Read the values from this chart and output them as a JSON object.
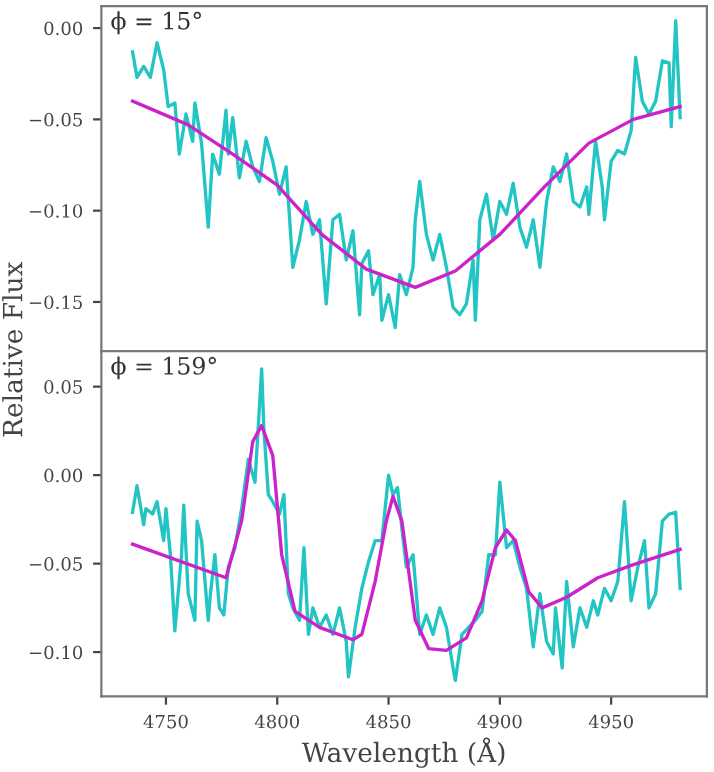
{
  "chart_data": [
    {
      "type": "line",
      "ylabel": "Relative Flux",
      "annotations": [
        "ϕ = 15°"
      ],
      "tick_labels": "y",
      "grid": false,
      "legend": false,
      "xlim": [
        4721,
        4993
      ],
      "ylim": [
        -0.177,
        0.012
      ],
      "yticks": [
        {
          "value": -0.15,
          "label": "−0.15"
        },
        {
          "value": -0.1,
          "label": "−0.10"
        },
        {
          "value": -0.05,
          "label": "−0.05"
        },
        {
          "value": 0,
          "label": "0.00"
        }
      ],
      "series": [
        {
          "color": "#22c4c4",
          "x": [
            4735,
            4737,
            4740,
            4743,
            4746,
            4749,
            4751,
            4754,
            4756,
            4759,
            4762,
            4763,
            4766,
            4769,
            4771,
            4774,
            4777,
            4778,
            4780,
            4783,
            4786,
            4789,
            4792,
            4795,
            4798,
            4801,
            4804,
            4807,
            4810,
            4813,
            4816,
            4819,
            4822,
            4825,
            4828,
            4831,
            4834,
            4837,
            4838,
            4841,
            4843,
            4846,
            4847,
            4850,
            4853,
            4855,
            4858,
            4861,
            4862,
            4864,
            4867,
            4870,
            4873,
            4876,
            4879,
            4882,
            4885,
            4888,
            4889,
            4891,
            4894,
            4897,
            4900,
            4903,
            4906,
            4909,
            4912,
            4915,
            4918,
            4921,
            4924,
            4927,
            4930,
            4933,
            4936,
            4939,
            4940,
            4943,
            4946,
            4947,
            4950,
            4953,
            4956,
            4959,
            4961,
            4964,
            4967,
            4970,
            4973,
            4976,
            4977,
            4979,
            4981
          ],
          "values": [
            -0.013,
            -0.027,
            -0.021,
            -0.027,
            -0.008,
            -0.023,
            -0.043,
            -0.041,
            -0.069,
            -0.047,
            -0.062,
            -0.041,
            -0.063,
            -0.109,
            -0.069,
            -0.08,
            -0.045,
            -0.069,
            -0.049,
            -0.082,
            -0.062,
            -0.076,
            -0.084,
            -0.06,
            -0.073,
            -0.091,
            -0.076,
            -0.131,
            -0.116,
            -0.095,
            -0.113,
            -0.105,
            -0.151,
            -0.105,
            -0.102,
            -0.127,
            -0.111,
            -0.157,
            -0.129,
            -0.122,
            -0.146,
            -0.135,
            -0.16,
            -0.146,
            -0.164,
            -0.135,
            -0.146,
            -0.131,
            -0.105,
            -0.084,
            -0.113,
            -0.127,
            -0.113,
            -0.131,
            -0.153,
            -0.157,
            -0.151,
            -0.127,
            -0.16,
            -0.105,
            -0.091,
            -0.116,
            -0.095,
            -0.102,
            -0.085,
            -0.109,
            -0.12,
            -0.105,
            -0.131,
            -0.095,
            -0.076,
            -0.084,
            -0.069,
            -0.095,
            -0.098,
            -0.087,
            -0.102,
            -0.062,
            -0.087,
            -0.105,
            -0.073,
            -0.067,
            -0.069,
            -0.056,
            -0.016,
            -0.04,
            -0.047,
            -0.04,
            -0.018,
            -0.019,
            -0.054,
            0.004,
            -0.049
          ]
        },
        {
          "color": "#cc22cc",
          "x": [
            4735,
            4760,
            4780,
            4800,
            4820,
            4840,
            4862,
            4880,
            4900,
            4920,
            4940,
            4960,
            4981
          ],
          "values": [
            -0.04,
            -0.053,
            -0.069,
            -0.086,
            -0.113,
            -0.132,
            -0.142,
            -0.133,
            -0.113,
            -0.087,
            -0.063,
            -0.05,
            -0.043
          ]
        }
      ]
    },
    {
      "type": "line",
      "xlabel": "Wavelength (Å)",
      "annotations": [
        "ϕ = 159°"
      ],
      "grid": false,
      "legend": false,
      "xlim": [
        4721,
        4993
      ],
      "ylim": [
        -0.125,
        0.07
      ],
      "xticks": [
        4750,
        4800,
        4850,
        4900,
        4950
      ],
      "yticks": [
        {
          "value": -0.1,
          "label": "−0.10"
        },
        {
          "value": -0.05,
          "label": "−0.05"
        },
        {
          "value": 0,
          "label": "0.00"
        },
        {
          "value": 0.05,
          "label": "0.05"
        }
      ],
      "series": [
        {
          "color": "#22c4c4",
          "x": [
            4735,
            4737,
            4740,
            4741,
            4744,
            4746,
            4749,
            4750,
            4752,
            4754,
            4757,
            4758,
            4760,
            4763,
            4764,
            4766,
            4769,
            4770,
            4772,
            4774,
            4776,
            4778,
            4781,
            4784,
            4787,
            4790,
            4793,
            4794,
            4796,
            4798,
            4801,
            4803,
            4805,
            4807,
            4810,
            4812,
            4814,
            4816,
            4819,
            4822,
            4825,
            4828,
            4831,
            4832,
            4835,
            4838,
            4841,
            4844,
            4847,
            4850,
            4852,
            4854,
            4856,
            4858,
            4861,
            4864,
            4867,
            4870,
            4873,
            4876,
            4879,
            4880,
            4883,
            4886,
            4889,
            4892,
            4895,
            4898,
            4900,
            4903,
            4906,
            4909,
            4912,
            4915,
            4918,
            4921,
            4924,
            4925,
            4928,
            4930,
            4933,
            4936,
            4939,
            4942,
            4944,
            4947,
            4950,
            4953,
            4956,
            4959,
            4962,
            4965,
            4967,
            4970,
            4973,
            4976,
            4979,
            4981
          ],
          "values": [
            -0.021,
            -0.006,
            -0.028,
            -0.019,
            -0.022,
            -0.015,
            -0.037,
            -0.019,
            -0.045,
            -0.088,
            -0.045,
            -0.017,
            -0.067,
            -0.082,
            -0.026,
            -0.037,
            -0.082,
            -0.067,
            -0.045,
            -0.075,
            -0.079,
            -0.052,
            -0.041,
            -0.019,
            0.009,
            -0.004,
            0.06,
            0.026,
            -0.011,
            -0.015,
            -0.022,
            -0.011,
            -0.067,
            -0.075,
            -0.082,
            -0.041,
            -0.09,
            -0.075,
            -0.086,
            -0.079,
            -0.09,
            -0.075,
            -0.094,
            -0.114,
            -0.086,
            -0.064,
            -0.049,
            -0.037,
            -0.037,
            0.0,
            -0.011,
            -0.007,
            -0.03,
            -0.052,
            -0.045,
            -0.09,
            -0.079,
            -0.09,
            -0.075,
            -0.086,
            -0.109,
            -0.116,
            -0.09,
            -0.086,
            -0.082,
            -0.077,
            -0.045,
            -0.045,
            -0.004,
            -0.041,
            -0.037,
            -0.052,
            -0.064,
            -0.097,
            -0.067,
            -0.094,
            -0.101,
            -0.075,
            -0.109,
            -0.06,
            -0.097,
            -0.075,
            -0.086,
            -0.071,
            -0.079,
            -0.064,
            -0.071,
            -0.06,
            -0.015,
            -0.071,
            -0.052,
            -0.037,
            -0.075,
            -0.067,
            -0.026,
            -0.022,
            -0.021,
            -0.064
          ]
        },
        {
          "color": "#cc22cc",
          "x": [
            4735,
            4777,
            4784,
            4789,
            4793,
            4798,
            4802,
            4808,
            4819,
            4834,
            4838,
            4844,
            4849,
            4852,
            4856,
            4862,
            4868,
            4876,
            4885,
            4892,
            4898,
            4903,
            4907,
            4913,
            4919,
            4930,
            4944,
            4959,
            4981
          ],
          "values": [
            -0.039,
            -0.058,
            -0.026,
            0.019,
            0.028,
            0.011,
            -0.045,
            -0.077,
            -0.086,
            -0.093,
            -0.09,
            -0.06,
            -0.026,
            -0.012,
            -0.026,
            -0.082,
            -0.098,
            -0.099,
            -0.092,
            -0.071,
            -0.041,
            -0.031,
            -0.037,
            -0.066,
            -0.075,
            -0.069,
            -0.058,
            -0.051,
            -0.042
          ]
        }
      ]
    }
  ]
}
